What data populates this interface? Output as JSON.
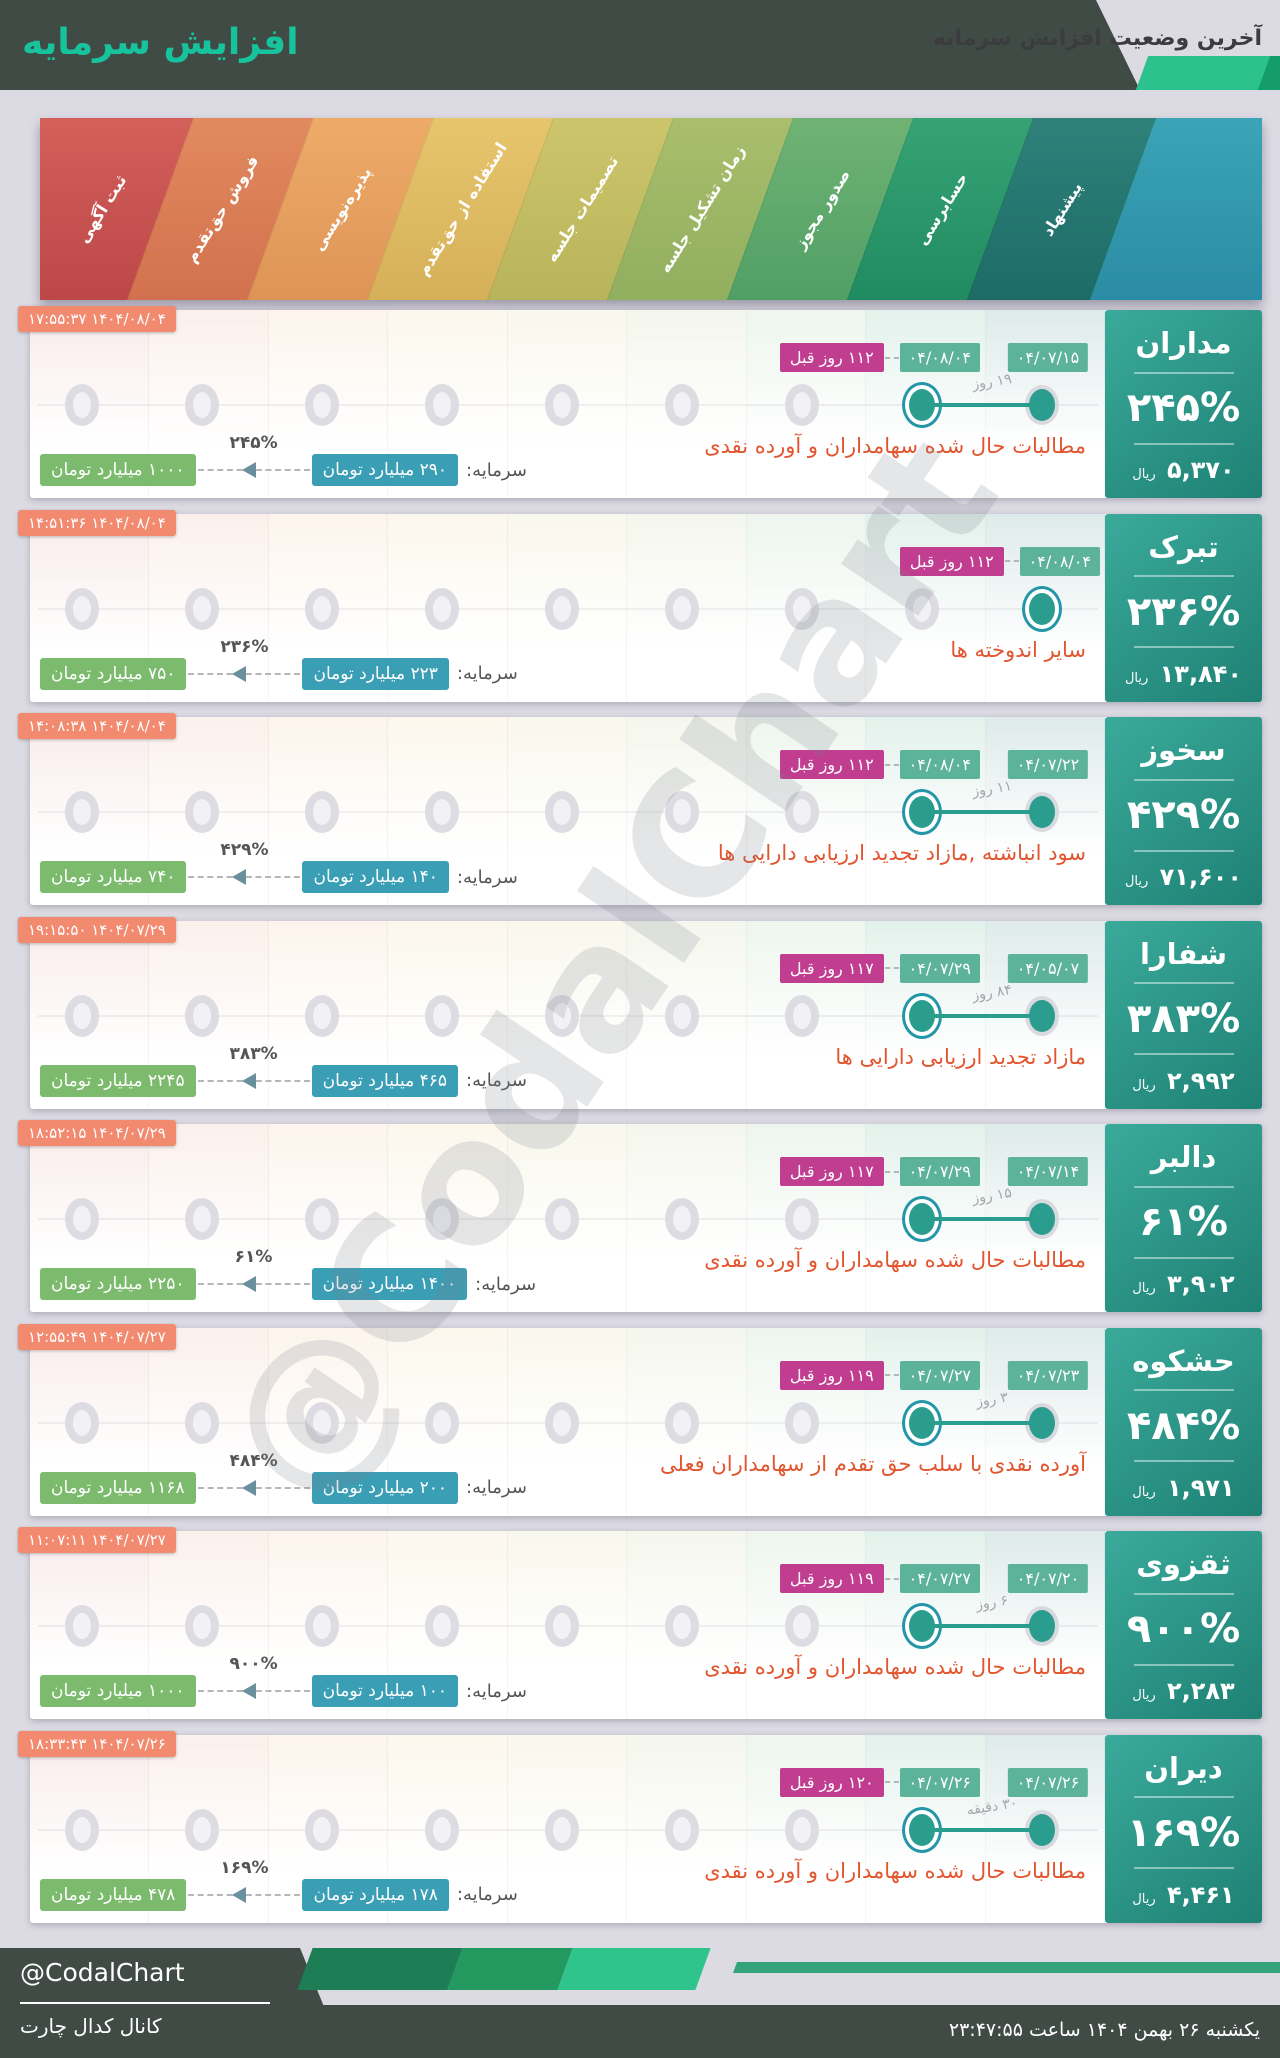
{
  "header": {
    "subtitle": "آخرین وضعیت افزایش سرمایه",
    "title": "افزایش سرمایه"
  },
  "stages": [
    "ثبت آگهی",
    "فروش حق‌تقدم",
    "پذیره‌نویسی",
    "استفاده از حق‌تقدم",
    "تصمیمات جلسه",
    "زمان تشکیل جلسه",
    "صدور مجوز",
    "حسابرسی",
    "پیشنهاد"
  ],
  "stripe_colors": [
    [
      "#d4605b",
      "#bb4748"
    ],
    [
      "#e18a5f",
      "#d2714e"
    ],
    [
      "#edab69",
      "#de9456"
    ],
    [
      "#e7c56d",
      "#d5b059"
    ],
    [
      "#cdc56b",
      "#b8b45b"
    ],
    [
      "#a9be6c",
      "#90af5f"
    ],
    [
      "#70b374",
      "#509f65"
    ],
    [
      "#36a374",
      "#208b61"
    ],
    [
      "#2f817a",
      "#1d6b67"
    ]
  ],
  "stage_tints": [
    "rgba(204,92,88,0.12)",
    "rgba(222,134,93,0.12)",
    "rgba(235,169,104,0.12)",
    "rgba(227,192,107,0.12)",
    "rgba(202,195,106,0.12)",
    "rgba(167,188,106,0.12)",
    "rgba(110,177,115,0.12)",
    "rgba(53,160,115,0.14)",
    "rgba(46,128,120,0.16)"
  ],
  "labels": {
    "capital": "سرمایه:",
    "rial": "ریال",
    "watermark": "@CodalChart"
  },
  "colors": {
    "accent_teal": "#2a9d8f",
    "badge_pink": "#c13d90",
    "badge_date": "#5cb399",
    "badge_timestamp": "#f28a70",
    "badge_old_capital": "#3a9eb5",
    "badge_new_capital": "#7cba6d",
    "reason_text": "#e2552e",
    "header_dark": "#404b46",
    "header_title_teal": "#17c39c"
  },
  "rows": [
    {
      "name": "مداران",
      "timestamp": "۱۴۰۴/۰۸/۰۴ ۱۷:۵۵:۳۷",
      "ago": "۱۱۲ روز قبل",
      "stage_date": "۰۴/۰۸/۰۴",
      "proposal_date": "۰۴/۰۷/۱۵",
      "duration": "۱۹ روز",
      "reason": "مطالبات حال شده سهامداران و آورده نقدی",
      "capital_from": "۲۹۰ میلیارد تومان",
      "capital_to": "۱۰۰۰ میلیارد تومان",
      "pct": "۲۴۵%",
      "price": "۵,۳۷۰",
      "single_stage": false
    },
    {
      "name": "تبرک",
      "timestamp": "۱۴۰۴/۰۸/۰۴ ۱۴:۵۱:۳۶",
      "ago": "۱۱۲ روز قبل",
      "stage_date": "۰۴/۰۸/۰۴",
      "proposal_date": null,
      "duration": null,
      "reason": "سایر اندوخته ها",
      "capital_from": "۲۲۳ میلیارد تومان",
      "capital_to": "۷۵۰ میلیارد تومان",
      "pct": "۲۳۶%",
      "price": "۱۳,۸۴۰",
      "single_stage": true
    },
    {
      "name": "سخوز",
      "timestamp": "۱۴۰۴/۰۸/۰۴ ۱۴:۰۸:۳۸",
      "ago": "۱۱۲ روز قبل",
      "stage_date": "۰۴/۰۸/۰۴",
      "proposal_date": "۰۴/۰۷/۲۲",
      "duration": "۱۱ روز",
      "reason": "سود انباشته ,مازاد تجدید ارزیابی دارایی ها",
      "capital_from": "۱۴۰ میلیارد تومان",
      "capital_to": "۷۴۰ میلیارد تومان",
      "pct": "۴۲۹%",
      "price": "۷۱,۶۰۰",
      "single_stage": false
    },
    {
      "name": "شفارا",
      "timestamp": "۱۴۰۴/۰۷/۲۹ ۱۹:۱۵:۵۰",
      "ago": "۱۱۷ روز قبل",
      "stage_date": "۰۴/۰۷/۲۹",
      "proposal_date": "۰۴/۰۵/۰۷",
      "duration": "۸۴ روز",
      "reason": "مازاد تجدید ارزیابی دارایی ها",
      "capital_from": "۴۶۵ میلیارد تومان",
      "capital_to": "۲۲۴۵ میلیارد تومان",
      "pct": "۳۸۳%",
      "price": "۲,۹۹۲",
      "single_stage": false
    },
    {
      "name": "دالبر",
      "timestamp": "۱۴۰۴/۰۷/۲۹ ۱۸:۵۲:۱۵",
      "ago": "۱۱۷ روز قبل",
      "stage_date": "۰۴/۰۷/۲۹",
      "proposal_date": "۰۴/۰۷/۱۴",
      "duration": "۱۵ روز",
      "reason": "مطالبات حال شده سهامداران و آورده نقدی",
      "capital_from": "۱۴۰۰ میلیارد تومان",
      "capital_to": "۲۲۵۰ میلیارد تومان",
      "pct": "۶۱%",
      "price": "۳,۹۰۲",
      "single_stage": false
    },
    {
      "name": "حشکوه",
      "timestamp": "۱۴۰۴/۰۷/۲۷ ۱۲:۵۵:۴۹",
      "ago": "۱۱۹ روز قبل",
      "stage_date": "۰۴/۰۷/۲۷",
      "proposal_date": "۰۴/۰۷/۲۳",
      "duration": "۳ روز",
      "reason": "آورده نقدی با سلب حق تقدم از سهامداران فعلی",
      "capital_from": "۲۰۰ میلیارد تومان",
      "capital_to": "۱۱۶۸ میلیارد تومان",
      "pct": "۴۸۴%",
      "price": "۱,۹۷۱",
      "single_stage": false
    },
    {
      "name": "ثقزوی",
      "timestamp": "۱۴۰۴/۰۷/۲۷ ۱۱:۰۷:۱۱",
      "ago": "۱۱۹ روز قبل",
      "stage_date": "۰۴/۰۷/۲۷",
      "proposal_date": "۰۴/۰۷/۲۰",
      "duration": "۶ روز",
      "reason": "مطالبات حال شده سهامداران و آورده نقدی",
      "capital_from": "۱۰۰ میلیارد تومان",
      "capital_to": "۱۰۰۰ میلیارد تومان",
      "pct": "۹۰۰%",
      "price": "۲,۲۸۳",
      "single_stage": false
    },
    {
      "name": "دیران",
      "timestamp": "۱۴۰۴/۰۷/۲۶ ۱۸:۳۳:۴۳",
      "ago": "۱۲۰ روز قبل",
      "stage_date": "۰۴/۰۷/۲۶",
      "proposal_date": "۰۴/۰۷/۲۶",
      "duration": "۳۰ دقیقه",
      "reason": "مطالبات حال شده سهامداران و آورده نقدی",
      "capital_from": "۱۷۸ میلیارد تومان",
      "capital_to": "۴۷۸ میلیارد تومان",
      "pct": "۱۶۹%",
      "price": "۴,۴۶۱",
      "single_stage": false
    }
  ],
  "footer": {
    "handle": "@CodalChart",
    "channel": "کانال کدال چارت",
    "datetime": "یکشنبه ۲۶ بهمن ۱۴۰۴ ساعت ۲۳:۴۷:۵۵"
  }
}
